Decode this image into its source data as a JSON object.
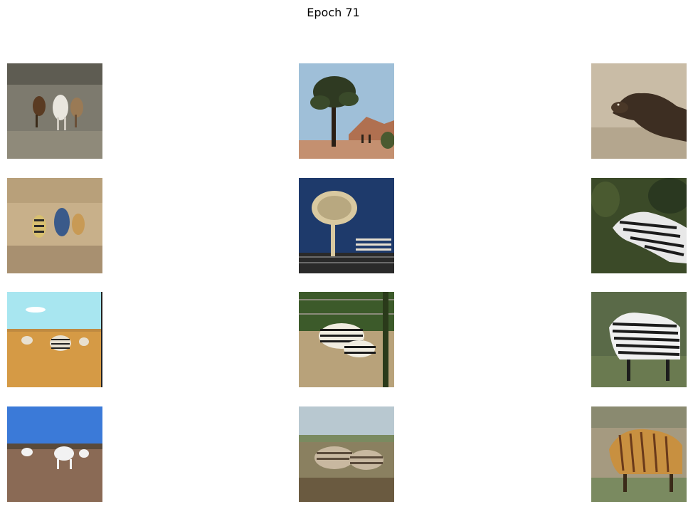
{
  "figure": {
    "title": "Epoch 71"
  },
  "grid": {
    "rows": 4,
    "columns": 3,
    "tiles": [
      {
        "row": 0,
        "col": 0,
        "name": "image-horses-in-grass",
        "palette": {
          "bg": "#7d7a6e",
          "fg": "#e9e6de",
          "accent": "#5a3b22"
        }
      },
      {
        "row": 0,
        "col": 1,
        "name": "image-tree-in-savanna",
        "palette": {
          "bg": "#9fbfd8",
          "fg": "#2f3a22",
          "accent": "#c49070"
        }
      },
      {
        "row": 0,
        "col": 2,
        "name": "image-sepia-horse",
        "palette": {
          "bg": "#c9bca6",
          "fg": "#3d2e22",
          "accent": "#8a7560"
        }
      },
      {
        "row": 1,
        "col": 0,
        "name": "image-generated-zebras-blurry",
        "palette": {
          "bg": "#c8b08a",
          "fg": "#2a2a2a",
          "accent": "#3a5a8a"
        }
      },
      {
        "row": 1,
        "col": 1,
        "name": "image-generated-tree-zebra",
        "palette": {
          "bg": "#1e3a6b",
          "fg": "#d9c9a0",
          "accent": "#2a2a2a"
        }
      },
      {
        "row": 1,
        "col": 2,
        "name": "image-generated-zebra-forest",
        "palette": {
          "bg": "#3b4a28",
          "fg": "#e8e8e8",
          "accent": "#1b1b1b"
        }
      },
      {
        "row": 2,
        "col": 0,
        "name": "image-zebras-dry-grassland",
        "palette": {
          "bg": "#d59a45",
          "fg": "#222222",
          "accent": "#a8e6f0"
        }
      },
      {
        "row": 2,
        "col": 1,
        "name": "image-zebras-in-enclosure",
        "palette": {
          "bg": "#b8a27a",
          "fg": "#1a1a1a",
          "accent": "#3c5a2a"
        }
      },
      {
        "row": 2,
        "col": 2,
        "name": "image-zebra-standing",
        "palette": {
          "bg": "#5a6a48",
          "fg": "#f0f0f0",
          "accent": "#1c1c1c"
        }
      },
      {
        "row": 3,
        "col": 0,
        "name": "image-white-horses-blue-sky",
        "palette": {
          "bg": "#8a6a55",
          "fg": "#f2f2f2",
          "accent": "#3b7ad8"
        }
      },
      {
        "row": 3,
        "col": 1,
        "name": "image-generated-zebras-faded",
        "palette": {
          "bg": "#8a8060",
          "fg": "#5a4a3a",
          "accent": "#b8c8d0"
        }
      },
      {
        "row": 3,
        "col": 2,
        "name": "image-generated-horse-striped",
        "palette": {
          "bg": "#a59a80",
          "fg": "#6a3a1a",
          "accent": "#c89040"
        }
      }
    ]
  }
}
